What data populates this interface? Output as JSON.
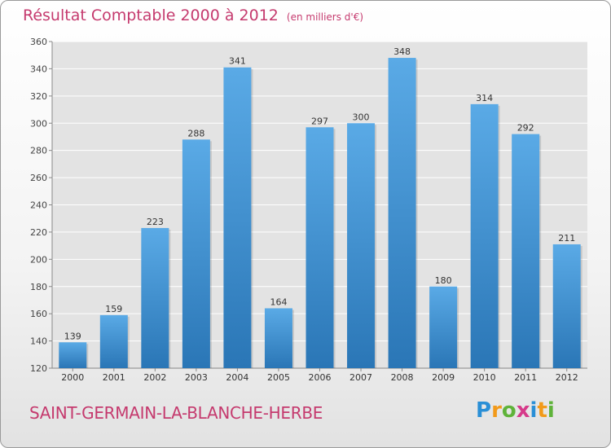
{
  "header": {
    "title": "Résultat Comptable 2000 à 2012",
    "subtitle": "(en milliers d'€)"
  },
  "footer": {
    "commune": "SAINT-GERMAIN-LA-BLANCHE-HERBE",
    "logo_text": "Proxiti"
  },
  "colors": {
    "bar_top": "#5aaae6",
    "bar_bottom": "#2a76b6",
    "accent": "#c53a6e",
    "plot_bg": "#e3e3e3",
    "grid": "#ffffff"
  },
  "chart_data": {
    "type": "bar",
    "title": "Résultat Comptable 2000 à 2012",
    "subtitle": "(en milliers d'€)",
    "categories": [
      "2000",
      "2001",
      "2002",
      "2003",
      "2004",
      "2005",
      "2006",
      "2007",
      "2008",
      "2009",
      "2010",
      "2011",
      "2012"
    ],
    "values": [
      139,
      159,
      223,
      288,
      341,
      164,
      297,
      300,
      348,
      180,
      314,
      292,
      211
    ],
    "ylim": [
      120,
      360
    ],
    "yticks": [
      120,
      140,
      160,
      180,
      200,
      220,
      240,
      260,
      280,
      300,
      320,
      340,
      360
    ],
    "grid": true,
    "data_labels": true
  }
}
